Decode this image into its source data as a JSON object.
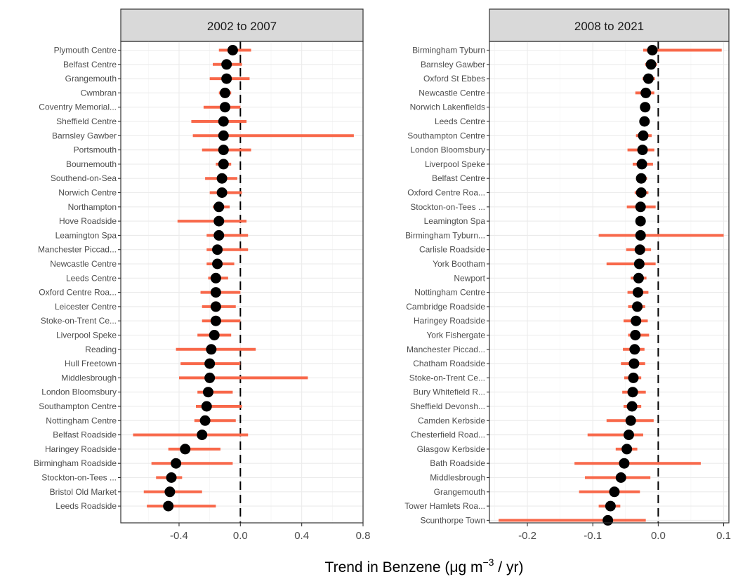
{
  "chart_data": {
    "type": "dot-interval",
    "xlabel": {
      "main": "Trend in Benzene (",
      "mu": "μ",
      "unit": "g m",
      "exp": "−3",
      "tail": " / yr)"
    },
    "point_color": "#000000",
    "interval_color": "#F8684A",
    "reference_line": 0,
    "grid": true,
    "panels": [
      {
        "title": "2002 to 2007",
        "xlim": [
          -0.78,
          0.8
        ],
        "xticks": [
          -0.4,
          0.0,
          0.4,
          0.8
        ],
        "xtick_labels": [
          "-0.4",
          "0.0",
          "0.4",
          "0.8"
        ],
        "sites": [
          {
            "name": "Plymouth Centre",
            "trend": -0.05,
            "lower": -0.14,
            "upper": 0.07
          },
          {
            "name": "Belfast Centre",
            "trend": -0.09,
            "lower": -0.18,
            "upper": 0.01
          },
          {
            "name": "Grangemouth",
            "trend": -0.09,
            "lower": -0.2,
            "upper": 0.06
          },
          {
            "name": "Cwmbran",
            "trend": -0.1,
            "lower": -0.14,
            "upper": -0.06
          },
          {
            "name": "Coventry Memorial...",
            "trend": -0.1,
            "lower": -0.24,
            "upper": 0.0
          },
          {
            "name": "Sheffield Centre",
            "trend": -0.11,
            "lower": -0.32,
            "upper": 0.04
          },
          {
            "name": "Barnsley Gawber",
            "trend": -0.11,
            "lower": -0.31,
            "upper": 0.74
          },
          {
            "name": "Portsmouth",
            "trend": -0.11,
            "lower": -0.25,
            "upper": 0.07
          },
          {
            "name": "Bournemouth",
            "trend": -0.11,
            "lower": -0.16,
            "upper": -0.06
          },
          {
            "name": "Southend-on-Sea",
            "trend": -0.12,
            "lower": -0.23,
            "upper": -0.02
          },
          {
            "name": "Norwich Centre",
            "trend": -0.12,
            "lower": -0.2,
            "upper": 0.01
          },
          {
            "name": "Northampton",
            "trend": -0.14,
            "lower": -0.18,
            "upper": -0.07
          },
          {
            "name": "Hove Roadside",
            "trend": -0.14,
            "lower": -0.41,
            "upper": 0.04
          },
          {
            "name": "Leamington Spa",
            "trend": -0.14,
            "lower": -0.22,
            "upper": 0.05
          },
          {
            "name": "Manchester Piccad...",
            "trend": -0.15,
            "lower": -0.22,
            "upper": 0.05
          },
          {
            "name": "Newcastle Centre",
            "trend": -0.15,
            "lower": -0.22,
            "upper": -0.04
          },
          {
            "name": "Leeds Centre",
            "trend": -0.16,
            "lower": -0.21,
            "upper": -0.08
          },
          {
            "name": "Oxford Centre Roa...",
            "trend": -0.16,
            "lower": -0.26,
            "upper": 0.0
          },
          {
            "name": "Leicester Centre",
            "trend": -0.16,
            "lower": -0.25,
            "upper": -0.03
          },
          {
            "name": "Stoke-on-Trent Ce...",
            "trend": -0.16,
            "lower": -0.25,
            "upper": 0.0
          },
          {
            "name": "Liverpool Speke",
            "trend": -0.17,
            "lower": -0.28,
            "upper": -0.06
          },
          {
            "name": "Reading",
            "trend": -0.19,
            "lower": -0.42,
            "upper": 0.1
          },
          {
            "name": "Hull Freetown",
            "trend": -0.2,
            "lower": -0.39,
            "upper": 0.0
          },
          {
            "name": "Middlesbrough",
            "trend": -0.2,
            "lower": -0.4,
            "upper": 0.44
          },
          {
            "name": "London Bloomsbury",
            "trend": -0.21,
            "lower": -0.28,
            "upper": -0.05
          },
          {
            "name": "Southampton Centre",
            "trend": -0.22,
            "lower": -0.29,
            "upper": 0.01
          },
          {
            "name": "Nottingham Centre",
            "trend": -0.23,
            "lower": -0.3,
            "upper": -0.03
          },
          {
            "name": "Belfast Roadside",
            "trend": -0.25,
            "lower": -0.7,
            "upper": 0.05
          },
          {
            "name": "Haringey Roadside",
            "trend": -0.36,
            "lower": -0.47,
            "upper": -0.13
          },
          {
            "name": "Birmingham Roadside",
            "trend": -0.42,
            "lower": -0.58,
            "upper": -0.05
          },
          {
            "name": "Stockton-on-Tees ...",
            "trend": -0.45,
            "lower": -0.55,
            "upper": -0.38
          },
          {
            "name": "Bristol Old Market",
            "trend": -0.46,
            "lower": -0.63,
            "upper": -0.25
          },
          {
            "name": "Leeds Roadside",
            "trend": -0.47,
            "lower": -0.61,
            "upper": -0.16
          }
        ]
      },
      {
        "title": "2008 to 2021",
        "xlim": [
          -0.258,
          0.108
        ],
        "xticks": [
          -0.2,
          -0.1,
          0.0,
          0.1
        ],
        "xtick_labels": [
          "-0.2",
          "-0.1",
          "0.0",
          "0.1"
        ],
        "sites": [
          {
            "name": "Birmingham Tyburn",
            "trend": -0.009,
            "lower": -0.023,
            "upper": 0.097
          },
          {
            "name": "Barnsley Gawber",
            "trend": -0.011,
            "lower": -0.02,
            "upper": -0.002
          },
          {
            "name": "Oxford St Ebbes",
            "trend": -0.015,
            "lower": -0.024,
            "upper": -0.005
          },
          {
            "name": "Newcastle Centre",
            "trend": -0.019,
            "lower": -0.035,
            "upper": -0.006
          },
          {
            "name": "Norwich Lakenfields",
            "trend": -0.02,
            "lower": -0.027,
            "upper": -0.012
          },
          {
            "name": "Leeds Centre",
            "trend": -0.021,
            "lower": -0.028,
            "upper": -0.013
          },
          {
            "name": "Southampton Centre",
            "trend": -0.023,
            "lower": -0.034,
            "upper": -0.01
          },
          {
            "name": "London Bloomsbury",
            "trend": -0.024,
            "lower": -0.047,
            "upper": -0.006
          },
          {
            "name": "Liverpool Speke",
            "trend": -0.025,
            "lower": -0.039,
            "upper": -0.008
          },
          {
            "name": "Belfast Centre",
            "trend": -0.026,
            "lower": -0.034,
            "upper": -0.017
          },
          {
            "name": "Oxford Centre Roa...",
            "trend": -0.026,
            "lower": -0.036,
            "upper": -0.015
          },
          {
            "name": "Stockton-on-Tees ...",
            "trend": -0.027,
            "lower": -0.048,
            "upper": -0.004
          },
          {
            "name": "Leamington Spa",
            "trend": -0.027,
            "lower": -0.033,
            "upper": -0.021
          },
          {
            "name": "Birmingham Tyburn...",
            "trend": -0.027,
            "lower": -0.091,
            "upper": 0.1
          },
          {
            "name": "Carlisle Roadside",
            "trend": -0.028,
            "lower": -0.049,
            "upper": -0.011
          },
          {
            "name": "York Bootham",
            "trend": -0.029,
            "lower": -0.079,
            "upper": -0.004
          },
          {
            "name": "Newport",
            "trend": -0.03,
            "lower": -0.042,
            "upper": -0.018
          },
          {
            "name": "Nottingham Centre",
            "trend": -0.031,
            "lower": -0.047,
            "upper": -0.015
          },
          {
            "name": "Cambridge Roadside",
            "trend": -0.032,
            "lower": -0.046,
            "upper": -0.02
          },
          {
            "name": "Haringey Roadside",
            "trend": -0.034,
            "lower": -0.053,
            "upper": -0.016
          },
          {
            "name": "York Fishergate",
            "trend": -0.035,
            "lower": -0.046,
            "upper": -0.014
          },
          {
            "name": "Manchester Piccad...",
            "trend": -0.036,
            "lower": -0.054,
            "upper": -0.021
          },
          {
            "name": "Chatham Roadside",
            "trend": -0.037,
            "lower": -0.057,
            "upper": -0.02
          },
          {
            "name": "Stoke-on-Trent Ce...",
            "trend": -0.038,
            "lower": -0.052,
            "upper": -0.026
          },
          {
            "name": "Bury Whitefield R...",
            "trend": -0.039,
            "lower": -0.055,
            "upper": -0.019
          },
          {
            "name": "Sheffield Devonsh...",
            "trend": -0.04,
            "lower": -0.053,
            "upper": -0.026
          },
          {
            "name": "Camden Kerbside",
            "trend": -0.042,
            "lower": -0.079,
            "upper": -0.007
          },
          {
            "name": "Chesterfield Road...",
            "trend": -0.045,
            "lower": -0.108,
            "upper": -0.023
          },
          {
            "name": "Glasgow Kerbside",
            "trend": -0.048,
            "lower": -0.065,
            "upper": -0.032
          },
          {
            "name": "Bath Roadside",
            "trend": -0.052,
            "lower": -0.128,
            "upper": 0.065
          },
          {
            "name": "Middlesbrough",
            "trend": -0.057,
            "lower": -0.112,
            "upper": -0.012
          },
          {
            "name": "Grangemouth",
            "trend": -0.067,
            "lower": -0.121,
            "upper": -0.028
          },
          {
            "name": "Tower Hamlets Roa...",
            "trend": -0.073,
            "lower": -0.091,
            "upper": -0.058
          },
          {
            "name": "Scunthorpe Town",
            "trend": -0.077,
            "lower": -0.244,
            "upper": -0.019
          }
        ]
      }
    ]
  }
}
